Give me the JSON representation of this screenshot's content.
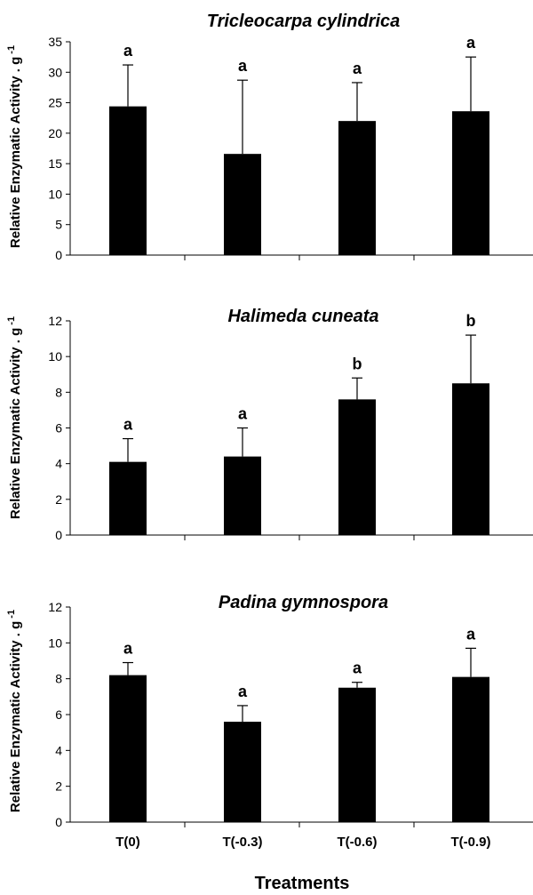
{
  "figure": {
    "xlabel": "Treatments",
    "categories": [
      "T(0)",
      "T(-0.3)",
      "T(-0.6)",
      "T(-0.9)"
    ]
  },
  "chart_data": [
    {
      "type": "bar",
      "title": "Tricleocarpa cylindrica",
      "ylabel": "Relative Enzymatic Activity . g",
      "ylabel_superscript": "-1",
      "categories": [
        "T(0)",
        "T(-0.3)",
        "T(-0.6)",
        "T(-0.9)"
      ],
      "values": [
        24.4,
        16.6,
        22.0,
        23.6
      ],
      "errors": [
        6.8,
        12.1,
        6.3,
        8.9
      ],
      "significance": [
        "a",
        "a",
        "a",
        "a"
      ],
      "ylim": [
        0,
        35
      ],
      "yticks": [
        "0",
        "5",
        "10",
        "15",
        "20",
        "25",
        "30",
        "35"
      ],
      "ytick_values": [
        0,
        5,
        10,
        15,
        20,
        25,
        30,
        35
      ],
      "grid": false,
      "bar_color": "#000000"
    },
    {
      "type": "bar",
      "title": "Halimeda cuneata",
      "ylabel": "Relative Enzymatic Activity . g",
      "ylabel_superscript": "-1",
      "categories": [
        "T(0)",
        "T(-0.3)",
        "T(-0.6)",
        "T(-0.9)"
      ],
      "values": [
        4.1,
        4.4,
        7.6,
        8.5
      ],
      "errors": [
        1.3,
        1.6,
        1.2,
        2.7
      ],
      "significance": [
        "a",
        "a",
        "b",
        "b"
      ],
      "ylim": [
        0,
        12
      ],
      "yticks": [
        "0",
        "2",
        "4",
        "6",
        "8",
        "10",
        "12"
      ],
      "ytick_values": [
        0,
        2,
        4,
        6,
        8,
        10,
        12
      ],
      "grid": false,
      "bar_color": "#000000"
    },
    {
      "type": "bar",
      "title": "Padina gymnospora",
      "ylabel": "Relative Enzymatic Activity . g",
      "ylabel_superscript": "-1",
      "categories": [
        "T(0)",
        "T(-0.3)",
        "T(-0.6)",
        "T(-0.9)"
      ],
      "values": [
        8.2,
        5.6,
        7.5,
        8.1
      ],
      "errors": [
        0.7,
        0.9,
        0.3,
        1.6
      ],
      "significance": [
        "a",
        "a",
        "a",
        "a"
      ],
      "ylim": [
        0,
        12
      ],
      "yticks": [
        "0",
        "2",
        "4",
        "6",
        "8",
        "10",
        "12"
      ],
      "ytick_values": [
        0,
        2,
        4,
        6,
        8,
        10,
        12
      ],
      "grid": false,
      "bar_color": "#000000"
    }
  ]
}
